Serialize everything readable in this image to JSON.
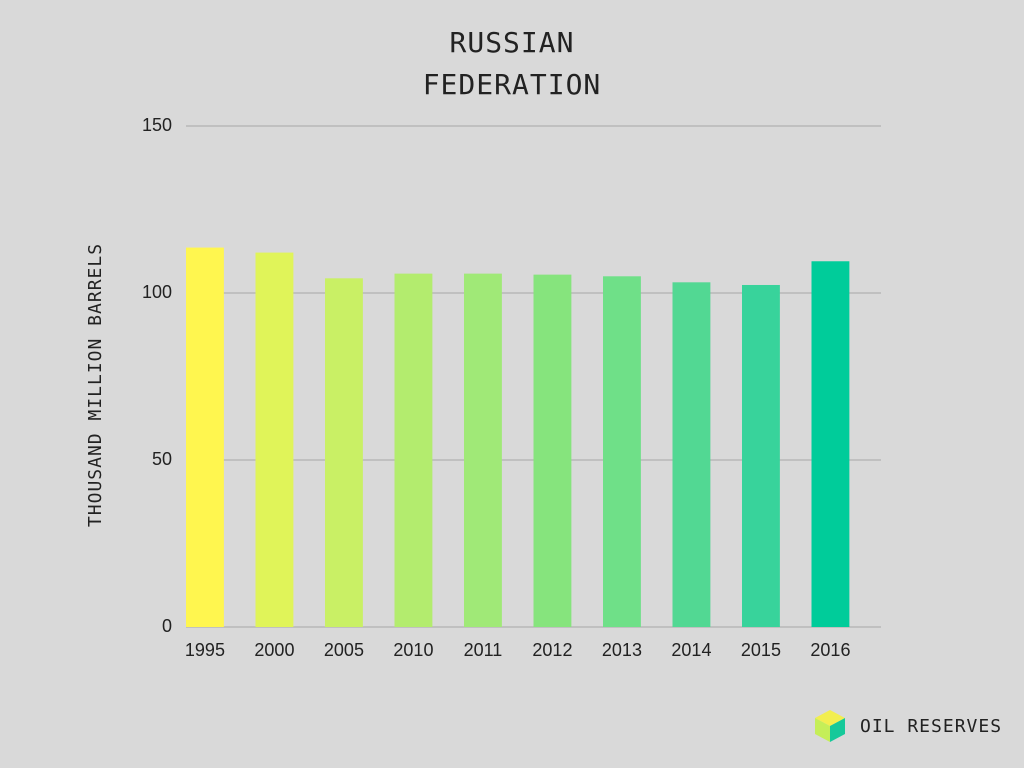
{
  "title": {
    "line1": "RUSSIAN",
    "line2": "FEDERATION"
  },
  "brand": {
    "label": "OIL RESERVES",
    "logo_icon": "cube-icon"
  },
  "chart_data": {
    "type": "bar",
    "title": "RUSSIAN FEDERATION",
    "xlabel": "",
    "ylabel": "THOUSAND MILLION BARRELS",
    "categories": [
      "1995",
      "2000",
      "2005",
      "2010",
      "2011",
      "2012",
      "2013",
      "2014",
      "2015",
      "2016"
    ],
    "values": [
      113.6,
      112.1,
      104.4,
      105.8,
      105.8,
      105.5,
      105.0,
      103.2,
      102.4,
      109.5
    ],
    "ylim": [
      0,
      150
    ],
    "yticks": [
      0,
      50,
      100,
      150
    ],
    "grid": true,
    "legend": "none",
    "bar_colors": [
      "#fff64f",
      "#e0f459",
      "#c9f065",
      "#b3ec6e",
      "#a0e977",
      "#86e47d",
      "#6fe088",
      "#52d893",
      "#38d39b",
      "#00cc9a"
    ],
    "grid_color": "#a6a6a6"
  }
}
